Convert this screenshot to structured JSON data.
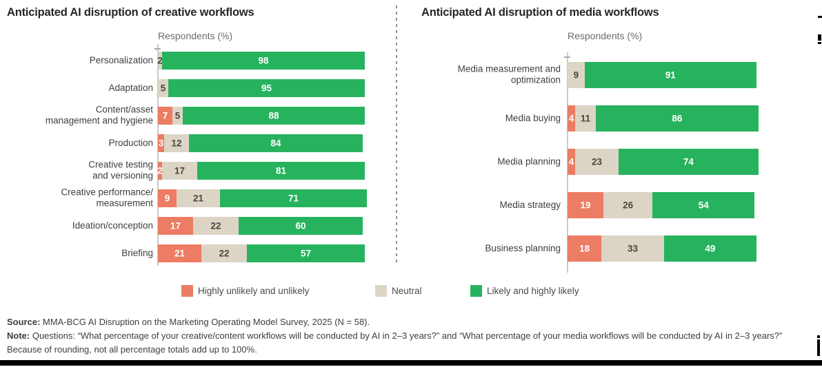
{
  "legend": [
    {
      "label": "Highly unlikely and unlikely",
      "color": "#ec7c63"
    },
    {
      "label": "Neutral",
      "color": "#dcd5c6"
    },
    {
      "label": "Likely and highly likely",
      "color": "#27b35e"
    }
  ],
  "colors": {
    "unlikely": "#ec7c63",
    "neutral": "#dcd5c6",
    "likely": "#27b35e",
    "neutral_value_text": "#4a463c",
    "light_value_text": "#ffffff"
  },
  "footer": {
    "source_label": "Source:",
    "source_text": " MMA-BCG AI Disruption on the Marketing Operating Model Survey, 2025 (N = 58).",
    "note_label": "Note:",
    "note_text": " Questions: “What percentage of your creative/content workflows will be conducted by AI in 2–3 years?” and “What percentage of your media workflows will be conducted by AI in 2–3 years?” Because of rounding, not all percentage totals add up to 100%."
  },
  "chart_data": [
    {
      "type": "bar",
      "orientation": "horizontal",
      "stacked": true,
      "title": "Anticipated AI disruption of creative workflows",
      "xlabel": "Respondents (%)",
      "xlim": [
        0,
        100
      ],
      "grid": false,
      "legend_position": "bottom",
      "categories": [
        "Personalization",
        "Adaptation",
        "Content/asset management and hygiene",
        "Production",
        "Creative testing and versioning",
        "Creative performance/ measurement",
        "Ideation/conception",
        "Briefing"
      ],
      "category_lines": [
        [
          "Personalization"
        ],
        [
          "Adaptation"
        ],
        [
          "Content/asset",
          "management and hygiene"
        ],
        [
          "Production"
        ],
        [
          "Creative testing",
          "and versioning"
        ],
        [
          "Creative performance/",
          "measurement"
        ],
        [
          "Ideation/conception"
        ],
        [
          "Briefing"
        ]
      ],
      "series": [
        {
          "name": "Highly unlikely and unlikely",
          "values": [
            0,
            0,
            7,
            3,
            2,
            9,
            17,
            21
          ]
        },
        {
          "name": "Neutral",
          "values": [
            2,
            5,
            5,
            12,
            17,
            21,
            22,
            22
          ]
        },
        {
          "name": "Likely and highly likely",
          "values": [
            98,
            95,
            88,
            84,
            81,
            71,
            60,
            57
          ]
        }
      ]
    },
    {
      "type": "bar",
      "orientation": "horizontal",
      "stacked": true,
      "title": "Anticipated AI disruption of media workflows",
      "xlabel": "Respondents (%)",
      "xlim": [
        0,
        100
      ],
      "grid": false,
      "legend_position": "bottom",
      "categories": [
        "Media measurement and optimization",
        "Media buying",
        "Media planning",
        "Media strategy",
        "Business planning"
      ],
      "category_lines": [
        [
          "Media measurement and",
          "optimization"
        ],
        [
          "Media buying"
        ],
        [
          "Media planning"
        ],
        [
          "Media strategy"
        ],
        [
          "Business planning"
        ]
      ],
      "series": [
        {
          "name": "Highly unlikely and unlikely",
          "values": [
            0,
            4,
            4,
            19,
            18
          ]
        },
        {
          "name": "Neutral",
          "values": [
            9,
            11,
            23,
            26,
            33
          ]
        },
        {
          "name": "Likely and highly likely",
          "values": [
            91,
            86,
            74,
            54,
            49
          ]
        }
      ]
    }
  ]
}
